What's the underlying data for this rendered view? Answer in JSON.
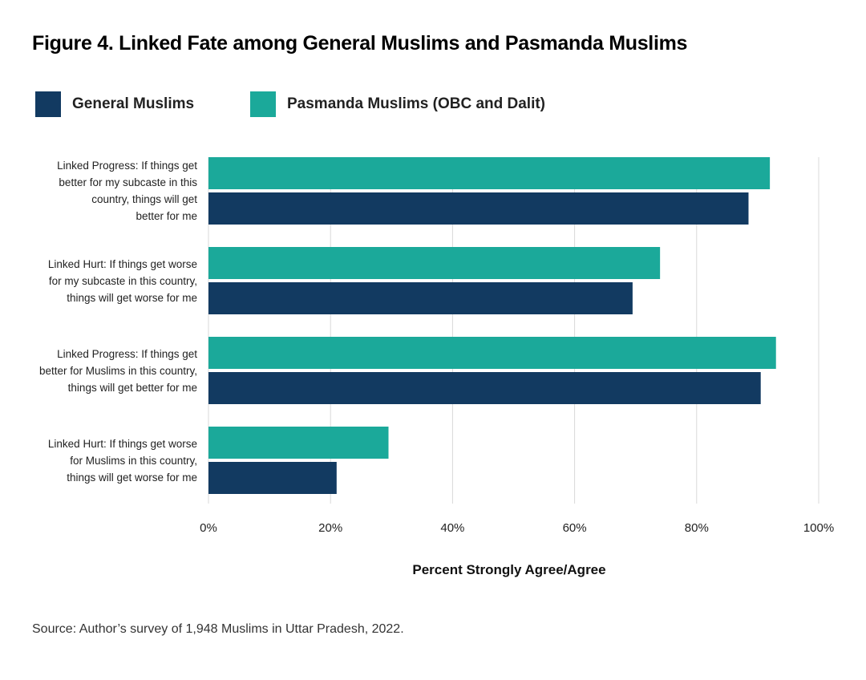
{
  "chart_data": {
    "type": "bar",
    "orientation": "horizontal",
    "title": "Figure 4. Linked Fate among General Muslims and Pasmanda Muslims",
    "categories": [
      "Linked Progress: If things get better for my subcaste in this country, things will get better for me",
      "Linked Hurt: If things get worse for my subcaste in this country, things will get worse for me",
      "Linked Progress: If things get better for Muslims in this country, things will get better for me",
      "Linked Hurt: If things get worse for Muslims in this country, things will get worse for me"
    ],
    "category_lines": [
      [
        "Linked Progress: If things get",
        "better for my subcaste in this",
        "country, things will get",
        "better for me"
      ],
      [
        "Linked Hurt: If things get worse",
        "for my subcaste in this country,",
        "things will get worse for me"
      ],
      [
        "Linked Progress: If things get",
        "better for Muslims in this country,",
        "things will get better for me"
      ],
      [
        "Linked Hurt: If things get worse",
        "for Muslims in this country,",
        "things will get worse for me"
      ]
    ],
    "series": [
      {
        "name": "Pasmanda Muslims (OBC and Dalit)",
        "color": "#1BA99A",
        "values": [
          92,
          74,
          93,
          29.5
        ]
      },
      {
        "name": "General Muslims",
        "color": "#123A61",
        "values": [
          88.5,
          69.5,
          90.5,
          21
        ]
      }
    ],
    "legend": [
      {
        "name": "General Muslims",
        "color": "#123A61"
      },
      {
        "name": "Pasmanda Muslims (OBC and Dalit)",
        "color": "#1BA99A"
      }
    ],
    "xlabel": "Percent Strongly Agree/Agree",
    "xlim": [
      0,
      100
    ],
    "xticks": [
      0,
      20,
      40,
      60,
      80,
      100
    ],
    "xtick_labels": [
      "0%",
      "20%",
      "40%",
      "60%",
      "80%",
      "100%"
    ],
    "grid": "vertical",
    "legend_position": "top-left"
  },
  "source": "Source: Author’s survey of 1,948 Muslims in Uttar Pradesh, 2022."
}
